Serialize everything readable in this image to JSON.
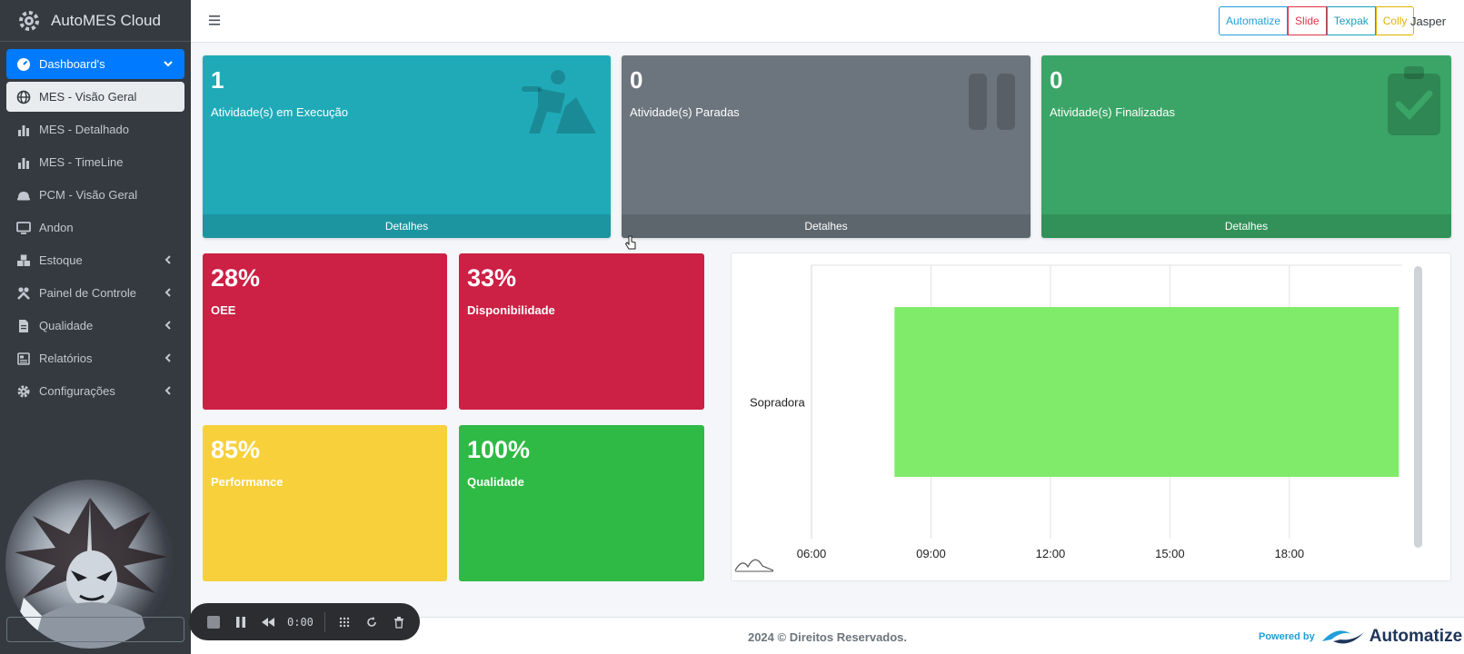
{
  "app": {
    "brand": "AutoMES Cloud",
    "user": "Jasper"
  },
  "sidebar": {
    "items": [
      {
        "label": "Dashboard's",
        "icon": "gauge-icon",
        "caret": "chevron-down-icon",
        "state": "active"
      },
      {
        "label": "MES - Visão Geral",
        "icon": "globe-icon",
        "state": "selected"
      },
      {
        "label": "MES - Detalhado",
        "icon": "bar-chart-icon"
      },
      {
        "label": "MES - TimeLine",
        "icon": "bar-chart-icon"
      },
      {
        "label": "PCM - Visão Geral",
        "icon": "hardhat-icon"
      },
      {
        "label": "Andon",
        "icon": "monitor-icon"
      },
      {
        "label": "Estoque",
        "icon": "boxes-icon",
        "caret": "chevron-left-icon"
      },
      {
        "label": "Painel de Controle",
        "icon": "tools-icon",
        "caret": "chevron-left-icon"
      },
      {
        "label": "Qualidade",
        "icon": "file-icon",
        "caret": "chevron-left-icon"
      },
      {
        "label": "Relatórios",
        "icon": "newspaper-icon",
        "caret": "chevron-left-icon"
      },
      {
        "label": "Configurações",
        "icon": "gear-icon",
        "caret": "chevron-left-icon"
      }
    ]
  },
  "topbar": {
    "brand_buttons": [
      {
        "label": "Automatize",
        "color": "#1f9fd8"
      },
      {
        "label": "Slide",
        "color": "#dc3545"
      },
      {
        "label": "Texpak",
        "color": "#17a2b8"
      },
      {
        "label": "Colly",
        "color": "#e0b400"
      }
    ]
  },
  "activities": [
    {
      "count": "1",
      "label": "Atividade(s) em Execução",
      "footer": "Detalhes",
      "color": "#20aab8",
      "icon": "worker-icon"
    },
    {
      "count": "0",
      "label": "Atividade(s) Paradas",
      "footer": "Detalhes",
      "color": "#6c757d",
      "icon": "pause-icon"
    },
    {
      "count": "0",
      "label": "Atividade(s) Finalizadas",
      "footer": "Detalhes",
      "color": "#3aa566",
      "icon": "clipboard-check-icon"
    }
  ],
  "metrics": [
    {
      "value": "28%",
      "label": "OEE",
      "color": "#cc2044"
    },
    {
      "value": "33%",
      "label": "Disponibilidade",
      "color": "#cc2044"
    },
    {
      "value": "85%",
      "label": "Performance",
      "color": "#f7d03c"
    },
    {
      "value": "100%",
      "label": "Qualidade",
      "color": "#2fb945"
    }
  ],
  "chart_data": {
    "type": "bar",
    "orientation": "horizontal-timeline",
    "categories": [
      "Sopradora"
    ],
    "x_ticks": [
      "06:00",
      "09:00",
      "12:00",
      "15:00",
      "18:00"
    ],
    "xlim": [
      "06:00",
      "20:50"
    ],
    "series": [
      {
        "category": "Sopradora",
        "start": "08:05",
        "end": "20:45",
        "color": "#80eb6a"
      }
    ],
    "grid": true
  },
  "footer": {
    "copyright": "2024 © Direitos Reservados.",
    "powered_by": "Powered by",
    "powered_brand": "Automatize"
  },
  "recorder": {
    "time": "0:00"
  }
}
